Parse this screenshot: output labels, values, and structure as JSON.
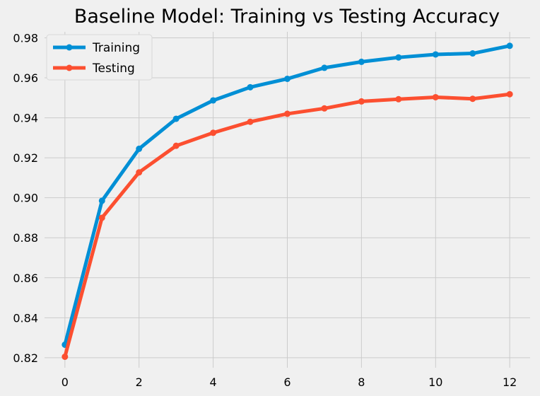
{
  "chart_data": {
    "type": "line",
    "title": "Baseline Model: Training vs Testing Accuracy",
    "xlabel": "",
    "ylabel": "",
    "x": [
      0,
      1,
      2,
      3,
      4,
      5,
      6,
      7,
      8,
      9,
      10,
      11,
      12
    ],
    "xlim": [
      -0.55,
      12.55
    ],
    "ylim": [
      0.815,
      0.983
    ],
    "xticks": [
      0,
      2,
      4,
      6,
      8,
      10,
      12
    ],
    "yticks": [
      0.82,
      0.84,
      0.86,
      0.88,
      0.9,
      0.92,
      0.94,
      0.96,
      0.98
    ],
    "ytick_labels": [
      "0.82",
      "0.84",
      "0.86",
      "0.88",
      "0.90",
      "0.92",
      "0.94",
      "0.96",
      "0.98"
    ],
    "grid": true,
    "legend_position": "top-left",
    "series": [
      {
        "name": "Training",
        "color": "#008fd5",
        "values": [
          0.8265,
          0.8985,
          0.9245,
          0.9395,
          0.9487,
          0.9553,
          0.9595,
          0.965,
          0.968,
          0.9702,
          0.9717,
          0.9722,
          0.976
        ]
      },
      {
        "name": "Testing",
        "color": "#fc4f30",
        "values": [
          0.8205,
          0.89,
          0.9127,
          0.926,
          0.9325,
          0.938,
          0.942,
          0.9447,
          0.9482,
          0.9493,
          0.9503,
          0.9495,
          0.9518
        ]
      }
    ]
  }
}
